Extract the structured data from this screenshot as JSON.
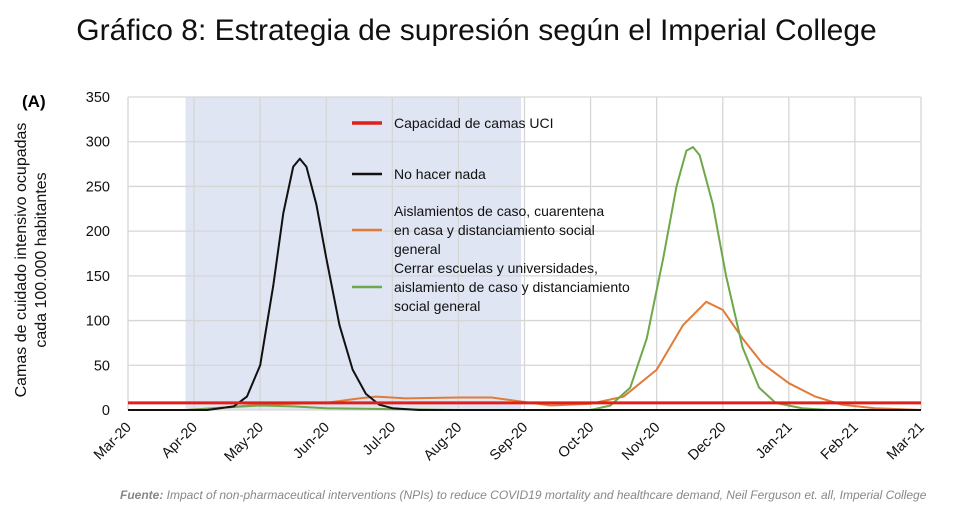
{
  "title": "Gráfico 8: Estrategia de supresión según el Imperial College",
  "footer": {
    "label": "Fuente:",
    "text": " Impact of non-pharmaceutical interventions (NPIs) to reduce COVID19 mortality and healthcare demand, Neil Ferguson et. all, Imperial College"
  },
  "chart_data": {
    "type": "line",
    "panel_label": "(A)",
    "ylabel_lines": [
      "Camas de cuidado intensivo ocupadas",
      "cada 100.000 habitantes"
    ],
    "x_ticks": [
      "Mar-20",
      "Apr-20",
      "May-20",
      "Jun-20",
      "Jul-20",
      "Aug-20",
      "Sep-20",
      "Oct-20",
      "Nov-20",
      "Dec-20",
      "Jan-21",
      "Feb-21",
      "Mar-21"
    ],
    "y_ticks": [
      0,
      50,
      100,
      150,
      200,
      250,
      300,
      350
    ],
    "ylim": [
      0,
      350
    ],
    "x_unit": "months since Mar-20",
    "shaded_period": [
      0.87,
      5.95
    ],
    "shade_color": "#dfe5f2",
    "grid": true,
    "legend_position": "top-center",
    "series": [
      {
        "name": "Capacidad de camas UCI",
        "color": "#e0201b",
        "width": 3,
        "points": [
          [
            0,
            8
          ],
          [
            12,
            8
          ]
        ]
      },
      {
        "name": "No hacer nada",
        "color": "#111111",
        "width": 2,
        "points": [
          [
            0,
            0
          ],
          [
            1.2,
            0
          ],
          [
            1.6,
            4
          ],
          [
            1.8,
            15
          ],
          [
            2.0,
            50
          ],
          [
            2.2,
            140
          ],
          [
            2.35,
            220
          ],
          [
            2.5,
            272
          ],
          [
            2.6,
            281
          ],
          [
            2.7,
            272
          ],
          [
            2.85,
            230
          ],
          [
            3.0,
            170
          ],
          [
            3.2,
            95
          ],
          [
            3.4,
            45
          ],
          [
            3.6,
            18
          ],
          [
            3.8,
            6
          ],
          [
            4.0,
            2
          ],
          [
            4.4,
            0
          ],
          [
            12,
            0
          ]
        ]
      },
      {
        "name": "Aislamientos de caso, cuarentena en casa y distanciamiento social general",
        "color": "#e07b39",
        "width": 2,
        "points": [
          [
            0,
            0
          ],
          [
            0.9,
            0
          ],
          [
            1.5,
            3
          ],
          [
            2.0,
            6
          ],
          [
            3.0,
            8
          ],
          [
            3.5,
            13
          ],
          [
            3.75,
            15
          ],
          [
            4.2,
            13
          ],
          [
            5.0,
            14
          ],
          [
            5.5,
            14
          ],
          [
            5.9,
            10
          ],
          [
            6.4,
            5
          ],
          [
            7.0,
            7
          ],
          [
            7.5,
            15
          ],
          [
            8.0,
            45
          ],
          [
            8.4,
            95
          ],
          [
            8.75,
            121
          ],
          [
            9.0,
            112
          ],
          [
            9.3,
            80
          ],
          [
            9.6,
            52
          ],
          [
            10.0,
            30
          ],
          [
            10.4,
            15
          ],
          [
            10.8,
            6
          ],
          [
            11.3,
            2
          ],
          [
            12,
            0
          ]
        ]
      },
      {
        "name": "Cerrar escuelas y universidades, aislamiento de caso y distanciamiento social general",
        "color": "#6ea84a",
        "width": 2,
        "points": [
          [
            0,
            0
          ],
          [
            0.9,
            0
          ],
          [
            1.5,
            3
          ],
          [
            2.0,
            5
          ],
          [
            2.5,
            4
          ],
          [
            3.0,
            2
          ],
          [
            4.0,
            1
          ],
          [
            5.0,
            0
          ],
          [
            7.0,
            0
          ],
          [
            7.3,
            5
          ],
          [
            7.6,
            25
          ],
          [
            7.85,
            80
          ],
          [
            8.1,
            170
          ],
          [
            8.3,
            250
          ],
          [
            8.45,
            290
          ],
          [
            8.55,
            294
          ],
          [
            8.65,
            285
          ],
          [
            8.85,
            230
          ],
          [
            9.05,
            150
          ],
          [
            9.3,
            70
          ],
          [
            9.55,
            25
          ],
          [
            9.8,
            8
          ],
          [
            10.2,
            2
          ],
          [
            10.6,
            0
          ],
          [
            12,
            0
          ]
        ]
      }
    ]
  }
}
